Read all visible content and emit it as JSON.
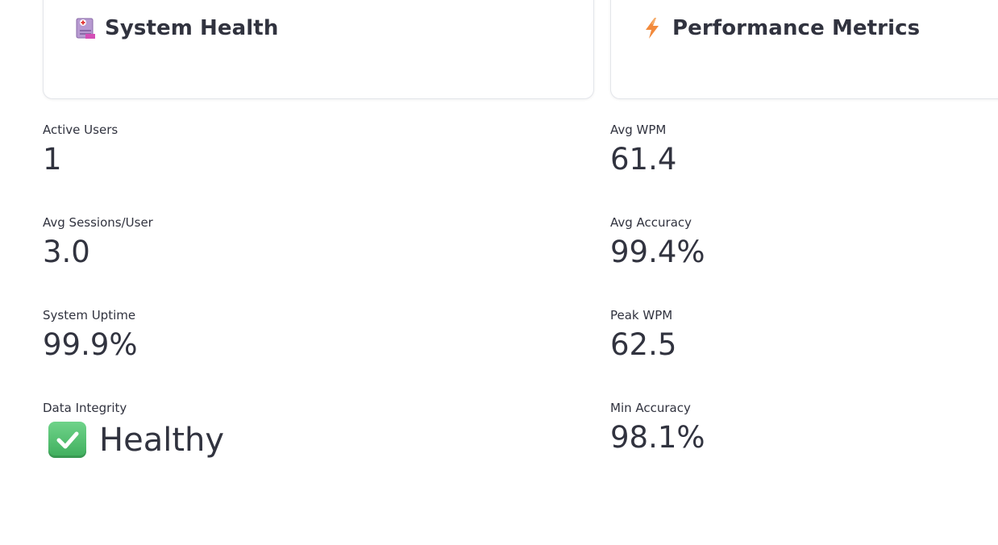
{
  "cards": {
    "left": {
      "title": "System Health",
      "icon": "hospital-icon"
    },
    "right": {
      "title": "Performance Metrics",
      "icon": "lightning-icon"
    }
  },
  "system_health": {
    "active_users": {
      "label": "Active Users",
      "value": "1"
    },
    "avg_sessions": {
      "label": "Avg Sessions/User",
      "value": "3.0"
    },
    "uptime": {
      "label": "System Uptime",
      "value": "99.9%"
    },
    "integrity": {
      "label": "Data Integrity",
      "value": "Healthy",
      "icon": "check-mark-icon"
    }
  },
  "performance": {
    "avg_wpm": {
      "label": "Avg WPM",
      "value": "61.4"
    },
    "avg_accuracy": {
      "label": "Avg Accuracy",
      "value": "99.4%"
    },
    "peak_wpm": {
      "label": "Peak WPM",
      "value": "62.5"
    },
    "min_accuracy": {
      "label": "Min Accuracy",
      "value": "98.1%"
    }
  },
  "colors": {
    "text": "#31333f",
    "check_green": "#4cbb6a",
    "bolt_orange": "#f28a3c"
  }
}
